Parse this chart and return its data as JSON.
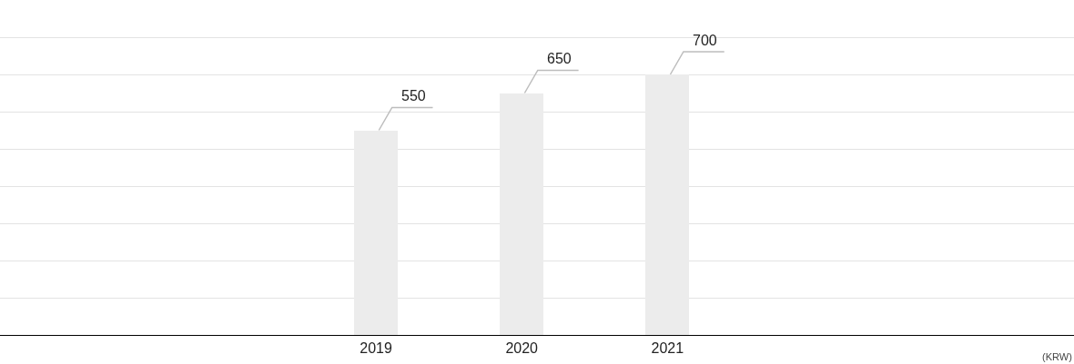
{
  "chart_data": {
    "type": "bar",
    "categories": [
      "2019",
      "2020",
      "2021"
    ],
    "values": [
      550,
      650,
      700
    ],
    "color": "#ececec",
    "data_labels": true,
    "ylim": [
      0,
      900
    ],
    "yticks": [
      {
        "value": 0,
        "label": null
      },
      {
        "value": 100,
        "label": null
      },
      {
        "value": 200,
        "label": null
      },
      {
        "value": 300,
        "label": null
      },
      {
        "value": 400,
        "label": null
      },
      {
        "value": 500,
        "label": null
      },
      {
        "value": 600,
        "label": null
      },
      {
        "value": 700,
        "label": null
      },
      {
        "value": 800,
        "label": null
      }
    ],
    "tick_labels": "x",
    "grid": "y",
    "annotations": [
      "(KRW)"
    ]
  }
}
